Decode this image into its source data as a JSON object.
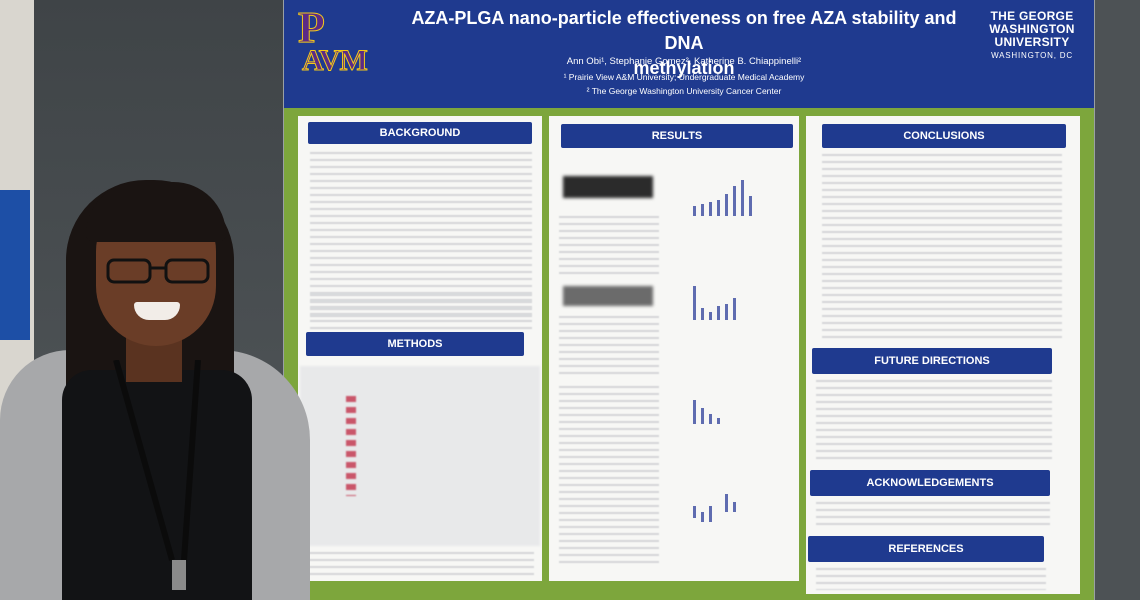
{
  "poster": {
    "title_line1": "AZA-PLGA nano-particle effectiveness on free AZA stability and DNA",
    "title_line2": "methylation",
    "authors": "Ann Obi¹, Stephanie Gomez², Katherine B. Chiappinelli²",
    "affiliation1": "¹ Prairie View A&M University; Undergraduate Medical Academy",
    "affiliation2": "² The George Washington University Cancer Center",
    "left_logo": "PVAM-logo",
    "right_logo_lines": [
      "THE GEORGE",
      "WASHINGTON",
      "UNIVERSITY"
    ],
    "right_logo_sub": "WASHINGTON, DC",
    "sections": {
      "background": "BACKGROUND",
      "methods": "METHODS",
      "results": "RESULTS",
      "conclusions": "CONCLUSIONS",
      "future_directions": "FUTURE DIRECTIONS",
      "acknowledgements": "ACKNOWLEDGEMENTS",
      "references": "REFERENCES"
    }
  },
  "colors": {
    "poster_header": "#1f3a8f",
    "poster_frame": "#7da63c",
    "section_banner": "#1f3a8f",
    "booth_wall": "#4a4e52"
  }
}
